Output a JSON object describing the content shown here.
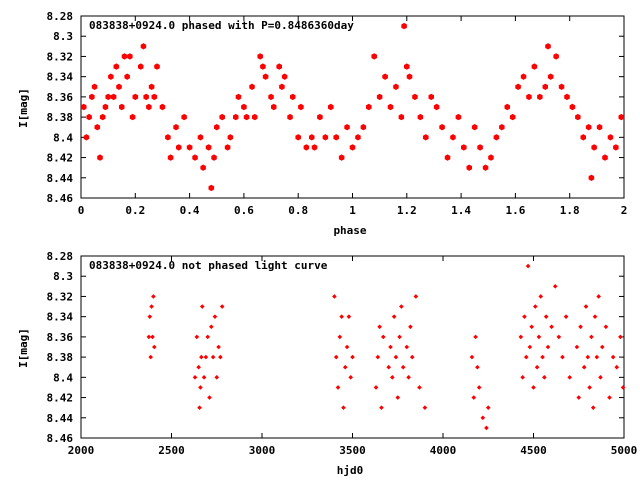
{
  "chart_data": [
    {
      "type": "scatter",
      "title": "083838+0924.0 phased with P=0.8486360day",
      "xlabel": "phase",
      "ylabel": "I[mag]",
      "xlim": [
        0,
        2
      ],
      "ylim": [
        8.46,
        8.28
      ],
      "y_inverted": true,
      "xticks": [
        "0",
        "0.2",
        "0.4",
        "0.6",
        "0.8",
        "1",
        "1.2",
        "1.4",
        "1.6",
        "1.8",
        "2"
      ],
      "yticks": [
        "8.28",
        "8.3",
        "8.32",
        "8.34",
        "8.36",
        "8.38",
        "8.4",
        "8.42",
        "8.44",
        "8.46"
      ],
      "marker": "filled-hexagon",
      "color": "#ff0000",
      "grid": false,
      "legend": "none",
      "series": [
        {
          "x": [
            0.01,
            0.02,
            0.03,
            0.04,
            0.05,
            0.06,
            0.07,
            0.08,
            0.09,
            0.1,
            0.11,
            0.12,
            0.13,
            0.14,
            0.15,
            0.16,
            0.17,
            0.18,
            0.19,
            0.2,
            0.22,
            0.23,
            0.24,
            0.25,
            0.26,
            0.27,
            0.28,
            0.3,
            0.32,
            0.33,
            0.35,
            0.36,
            0.38,
            0.4,
            0.42,
            0.44,
            0.45,
            0.47,
            0.48,
            0.49,
            0.5,
            0.52,
            0.54,
            0.55,
            0.57,
            0.58,
            0.6,
            0.61,
            0.63,
            0.64,
            0.66,
            0.67,
            0.68,
            0.7,
            0.71,
            0.73,
            0.74,
            0.75,
            0.77,
            0.78,
            0.8,
            0.81,
            0.83,
            0.85,
            0.86,
            0.88,
            0.9,
            0.92,
            0.94,
            0.96,
            0.98,
            1.0,
            1.02,
            1.04,
            1.06,
            1.08,
            1.1,
            1.12,
            1.14,
            1.16,
            1.18,
            1.19,
            1.2,
            1.21,
            1.23,
            1.25,
            1.27,
            1.29,
            1.31,
            1.33,
            1.35,
            1.37,
            1.39,
            1.41,
            1.43,
            1.45,
            1.47,
            1.49,
            1.51,
            1.53,
            1.55,
            1.57,
            1.59,
            1.61,
            1.63,
            1.65,
            1.67,
            1.69,
            1.71,
            1.72,
            1.73,
            1.75,
            1.77,
            1.79,
            1.81,
            1.83,
            1.85,
            1.87,
            1.88,
            1.89,
            1.91,
            1.93,
            1.95,
            1.97,
            1.99
          ],
          "y": [
            8.37,
            8.4,
            8.38,
            8.36,
            8.35,
            8.39,
            8.42,
            8.38,
            8.37,
            8.36,
            8.34,
            8.36,
            8.33,
            8.35,
            8.37,
            8.32,
            8.34,
            8.32,
            8.38,
            8.36,
            8.33,
            8.31,
            8.36,
            8.37,
            8.35,
            8.36,
            8.33,
            8.37,
            8.4,
            8.42,
            8.39,
            8.41,
            8.38,
            8.41,
            8.42,
            8.4,
            8.43,
            8.41,
            8.45,
            8.42,
            8.39,
            8.38,
            8.41,
            8.4,
            8.38,
            8.36,
            8.37,
            8.38,
            8.35,
            8.38,
            8.32,
            8.33,
            8.34,
            8.36,
            8.37,
            8.33,
            8.35,
            8.34,
            8.38,
            8.36,
            8.4,
            8.37,
            8.41,
            8.4,
            8.41,
            8.38,
            8.4,
            8.37,
            8.4,
            8.42,
            8.39,
            8.41,
            8.4,
            8.39,
            8.37,
            8.32,
            8.36,
            8.34,
            8.37,
            8.35,
            8.38,
            8.29,
            8.33,
            8.34,
            8.36,
            8.38,
            8.4,
            8.36,
            8.37,
            8.39,
            8.42,
            8.4,
            8.38,
            8.41,
            8.43,
            8.39,
            8.41,
            8.43,
            8.42,
            8.4,
            8.39,
            8.37,
            8.38,
            8.35,
            8.34,
            8.36,
            8.33,
            8.36,
            8.35,
            8.31,
            8.34,
            8.32,
            8.35,
            8.36,
            8.37,
            8.38,
            8.4,
            8.39,
            8.44,
            8.41,
            8.39,
            8.42,
            8.4,
            8.41,
            8.38
          ],
          "note_values_estimated": "approximate readings from the plot"
        }
      ]
    },
    {
      "type": "scatter",
      "title": "083838+0924.0 not phased light curve",
      "xlabel": "hjd0",
      "ylabel": "I[mag]",
      "xlim": [
        2000,
        5000
      ],
      "ylim": [
        8.46,
        8.28
      ],
      "y_inverted": true,
      "xticks": [
        "2000",
        "2500",
        "3000",
        "3500",
        "4000",
        "4500",
        "5000"
      ],
      "yticks": [
        "8.28",
        "8.3",
        "8.32",
        "8.34",
        "8.36",
        "8.38",
        "8.4",
        "8.42",
        "8.44",
        "8.46"
      ],
      "marker": "small-diamond",
      "color": "#ff0000",
      "grid": false,
      "legend": "none",
      "series": [
        {
          "x": [
            2375,
            2380,
            2385,
            2390,
            2395,
            2400,
            2405,
            2630,
            2640,
            2650,
            2655,
            2660,
            2665,
            2670,
            2680,
            2690,
            2700,
            2710,
            2720,
            2730,
            2740,
            2750,
            2760,
            2770,
            2780,
            3400,
            3410,
            3420,
            3430,
            3440,
            3450,
            3460,
            3470,
            3480,
            3490,
            3500,
            3630,
            3640,
            3650,
            3660,
            3670,
            3700,
            3710,
            3720,
            3730,
            3740,
            3750,
            3760,
            3770,
            3780,
            3800,
            3810,
            3820,
            3830,
            3850,
            3870,
            3900,
            4160,
            4170,
            4180,
            4190,
            4200,
            4220,
            4240,
            4250,
            4430,
            4440,
            4450,
            4460,
            4470,
            4480,
            4490,
            4500,
            4510,
            4520,
            4530,
            4540,
            4550,
            4560,
            4570,
            4580,
            4600,
            4620,
            4640,
            4660,
            4680,
            4700,
            4740,
            4750,
            4760,
            4780,
            4790,
            4800,
            4810,
            4820,
            4830,
            4840,
            4850,
            4860,
            4870,
            4880,
            4900,
            4920,
            4940,
            4960,
            4980,
            4995
          ],
          "y": [
            8.36,
            8.34,
            8.38,
            8.33,
            8.36,
            8.32,
            8.37,
            8.4,
            8.36,
            8.39,
            8.43,
            8.41,
            8.38,
            8.33,
            8.4,
            8.38,
            8.36,
            8.42,
            8.35,
            8.38,
            8.34,
            8.4,
            8.37,
            8.38,
            8.33,
            8.32,
            8.38,
            8.41,
            8.36,
            8.34,
            8.43,
            8.39,
            8.37,
            8.34,
            8.4,
            8.38,
            8.41,
            8.38,
            8.35,
            8.43,
            8.36,
            8.39,
            8.37,
            8.4,
            8.34,
            8.38,
            8.42,
            8.36,
            8.33,
            8.39,
            8.37,
            8.4,
            8.35,
            8.38,
            8.32,
            8.41,
            8.43,
            8.38,
            8.42,
            8.36,
            8.39,
            8.41,
            8.44,
            8.45,
            8.43,
            8.36,
            8.4,
            8.34,
            8.38,
            8.29,
            8.37,
            8.35,
            8.41,
            8.33,
            8.39,
            8.36,
            8.32,
            8.38,
            8.4,
            8.34,
            8.37,
            8.35,
            8.31,
            8.36,
            8.38,
            8.34,
            8.4,
            8.37,
            8.42,
            8.35,
            8.39,
            8.33,
            8.38,
            8.41,
            8.36,
            8.43,
            8.34,
            8.38,
            8.32,
            8.4,
            8.37,
            8.35,
            8.42,
            8.38,
            8.39,
            8.36,
            8.41
          ],
          "note_values_estimated": "approximate readings from the plot"
        }
      ]
    }
  ]
}
